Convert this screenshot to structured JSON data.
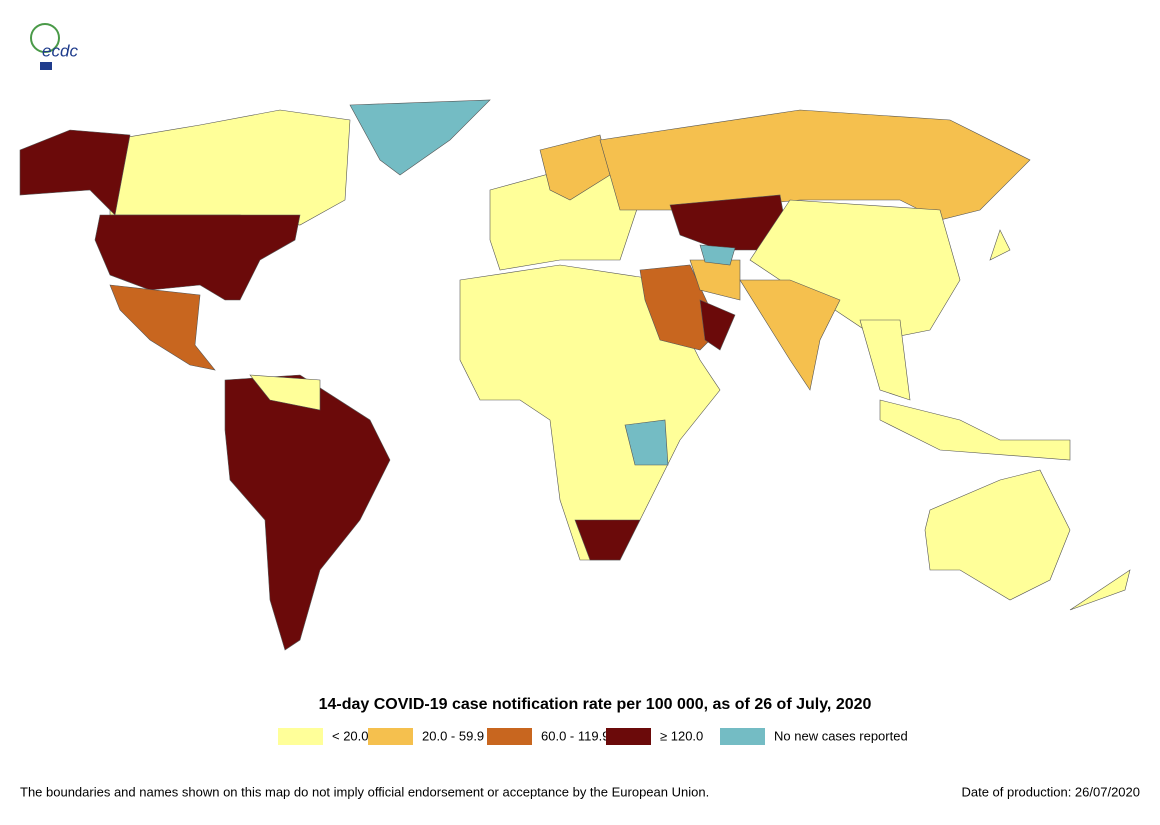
{
  "logo": {
    "text": "ecdc"
  },
  "title": "14-day COVID-19 case notification rate per 100 000, as of 26 of July, 2020",
  "legend": {
    "items": [
      {
        "label": "< 20.0",
        "color": "#ffff99"
      },
      {
        "label": "20.0 - 59.9",
        "color": "#f5c04e"
      },
      {
        "label": "60.0 - 119.9",
        "color": "#c8661f"
      },
      {
        "label": "≥ 120.0",
        "color": "#6b0a0a"
      },
      {
        "label": "No new cases reported",
        "color": "#74bcc4"
      }
    ]
  },
  "footer": {
    "disclaimer": "The boundaries and names shown on this map do not imply official endorsement or acceptance by the European Union.",
    "date": "Date of production: 26/07/2020"
  }
}
